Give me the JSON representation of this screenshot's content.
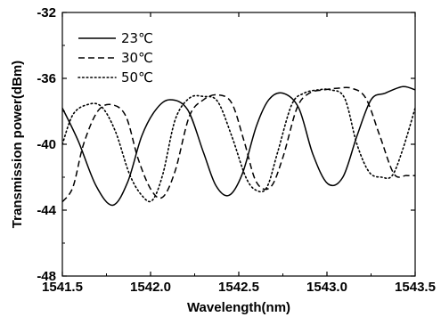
{
  "chart_data": {
    "type": "line",
    "xlabel": "Wavelength(nm)",
    "ylabel": "Transmission power(dBm)",
    "xlim": [
      1541.5,
      1543.5
    ],
    "ylim": [
      -48,
      -32
    ],
    "xticks": [
      1541.5,
      1542.0,
      1542.5,
      1543.0,
      1543.5
    ],
    "xtick_labels": [
      "1541.5",
      "1542.0",
      "1542.5",
      "1543.0",
      "1543.5"
    ],
    "yticks": [
      -48,
      -44,
      -40,
      -36,
      -32
    ],
    "ytick_labels": [
      "-48",
      "-44",
      "-40",
      "-36",
      "-32"
    ],
    "grid": false,
    "legend_position": "top-left",
    "series": [
      {
        "name": "23℃",
        "style": "solid",
        "x": [
          1541.5,
          1541.59,
          1541.69,
          1541.785,
          1541.87,
          1541.95,
          1542.03,
          1542.11,
          1542.21,
          1542.3,
          1542.37,
          1542.445,
          1542.52,
          1542.6,
          1542.67,
          1542.75,
          1542.84,
          1542.92,
          1543.005,
          1543.09,
          1543.17,
          1543.25,
          1543.33,
          1543.43,
          1543.5
        ],
        "values": [
          -37.8,
          -39.8,
          -42.5,
          -43.7,
          -42.3,
          -39.5,
          -37.9,
          -37.3,
          -37.9,
          -40.5,
          -42.5,
          -43.1,
          -41.8,
          -38.9,
          -37.3,
          -36.9,
          -37.8,
          -40.6,
          -42.4,
          -42.0,
          -39.5,
          -37.3,
          -36.9,
          -36.5,
          -36.7
        ]
      },
      {
        "name": "30℃",
        "style": "dashed",
        "x": [
          1541.5,
          1541.56,
          1541.62,
          1541.7,
          1541.78,
          1541.86,
          1541.93,
          1542.005,
          1542.07,
          1542.14,
          1542.22,
          1542.3,
          1542.38,
          1542.46,
          1542.53,
          1542.6,
          1542.68,
          1542.75,
          1542.83,
          1542.9,
          1542.98,
          1543.06,
          1543.14,
          1543.22,
          1543.3,
          1543.38,
          1543.45,
          1543.5
        ],
        "values": [
          -43.5,
          -42.6,
          -40.0,
          -38.0,
          -37.6,
          -38.3,
          -40.9,
          -42.8,
          -43.2,
          -41.6,
          -38.3,
          -37.3,
          -37.0,
          -37.5,
          -39.8,
          -42.3,
          -42.6,
          -40.8,
          -37.8,
          -36.9,
          -36.7,
          -36.6,
          -36.6,
          -37.2,
          -39.5,
          -41.8,
          -41.9,
          -41.9
        ]
      },
      {
        "name": "50℃",
        "style": "dotted",
        "x": [
          1541.5,
          1541.56,
          1541.64,
          1541.72,
          1541.8,
          1541.88,
          1541.95,
          1542.01,
          1542.07,
          1542.14,
          1542.22,
          1542.3,
          1542.38,
          1542.46,
          1542.54,
          1542.6,
          1542.66,
          1542.72,
          1542.8,
          1542.87,
          1542.95,
          1543.02,
          1543.1,
          1543.17,
          1543.24,
          1543.31,
          1543.37,
          1543.43,
          1543.5
        ],
        "values": [
          -40.0,
          -38.2,
          -37.6,
          -37.7,
          -39.2,
          -41.8,
          -43.1,
          -43.4,
          -41.8,
          -38.5,
          -37.2,
          -37.1,
          -37.4,
          -39.5,
          -42.0,
          -42.8,
          -42.6,
          -40.5,
          -37.6,
          -36.9,
          -36.7,
          -36.7,
          -37.2,
          -40.0,
          -41.7,
          -42.0,
          -41.9,
          -40.3,
          -37.8
        ]
      }
    ]
  }
}
